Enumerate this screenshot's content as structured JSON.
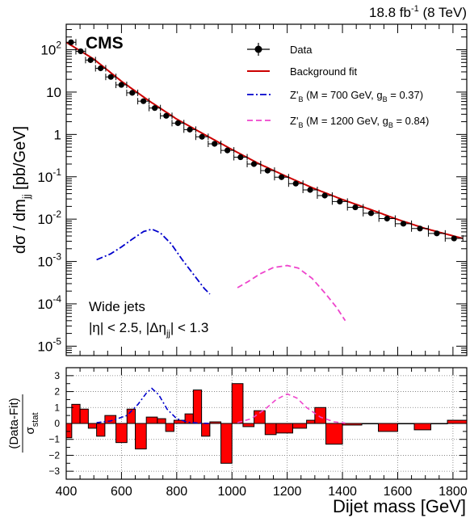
{
  "header": {
    "lumi": "18.8 fb",
    "lumi_sup": "-1",
    "energy": " (8 TeV)"
  },
  "chart_data": [
    {
      "type": "scatter",
      "panel": "main",
      "experiment_label": "CMS",
      "xlabel": "Dijet mass [GeV]",
      "ylabel_parts": {
        "main": "dσ / dm",
        "sub": "jj",
        "tail": " [pb/GeV]"
      },
      "yscale": "log",
      "xlim": [
        400,
        1850
      ],
      "ylim": [
        6e-06,
        400
      ],
      "x_ticks": [
        400,
        600,
        800,
        1000,
        1200,
        1400,
        1600,
        1800
      ],
      "y_ticks": [
        {
          "value": 1e-05,
          "base": "10",
          "exp": "-5"
        },
        {
          "value": 0.0001,
          "base": "10",
          "exp": "-4"
        },
        {
          "value": 0.001,
          "base": "10",
          "exp": "-3"
        },
        {
          "value": 0.01,
          "base": "10",
          "exp": "-2"
        },
        {
          "value": 0.1,
          "base": "10",
          "exp": "-1"
        },
        {
          "value": 1,
          "base": "1",
          "exp": ""
        },
        {
          "value": 10,
          "base": "10",
          "exp": ""
        },
        {
          "value": 100,
          "base": "10",
          "exp": "2"
        }
      ],
      "annotation_lines": [
        {
          "text": "Wide jets"
        },
        {
          "text": "|η| < 2.5, |Δη",
          "sub": "jj",
          "tail": "| < 1.3"
        }
      ],
      "legend": [
        {
          "key": "data",
          "label": "Data",
          "sub": "",
          "tail": "",
          "color": "#000000",
          "style": "marker"
        },
        {
          "key": "fit",
          "label": "Background fit",
          "sub": "",
          "tail": "",
          "color": "#cc0000",
          "style": "solid"
        },
        {
          "key": "zb700",
          "label": "Z'",
          "sub": "B",
          "tail": " (M = 700 GeV, g",
          "sub2": "B",
          "tail2": " = 0.37)",
          "color": "#0000cc",
          "style": "dashdot"
        },
        {
          "key": "zb1200",
          "label": "Z'",
          "sub": "B",
          "tail": " (M = 1200 GeV, g",
          "sub2": "B",
          "tail2": " = 0.84)",
          "color": "#ee44cc",
          "style": "dashed"
        }
      ],
      "series": [
        {
          "name": "Data",
          "color": "#000000",
          "bins": [
            [
              400,
              435,
              150
            ],
            [
              435,
              470,
              92
            ],
            [
              470,
              506,
              57
            ],
            [
              506,
              543,
              36.5
            ],
            [
              543,
              580,
              22.8
            ],
            [
              580,
              619,
              14.8
            ],
            [
              619,
              659,
              9.6
            ],
            [
              659,
              700,
              6.1
            ],
            [
              700,
              741,
              4.2
            ],
            [
              741,
              783,
              2.75
            ],
            [
              783,
              826,
              1.85
            ],
            [
              826,
              869,
              1.3
            ],
            [
              869,
              914,
              0.88
            ],
            [
              914,
              960,
              0.6
            ],
            [
              960,
              1007,
              0.42
            ],
            [
              1007,
              1055,
              0.29
            ],
            [
              1055,
              1104,
              0.2
            ],
            [
              1104,
              1154,
              0.14
            ],
            [
              1154,
              1205,
              0.098
            ],
            [
              1205,
              1257,
              0.069
            ],
            [
              1257,
              1309,
              0.049
            ],
            [
              1309,
              1363,
              0.036
            ],
            [
              1363,
              1418,
              0.026
            ],
            [
              1418,
              1475,
              0.019
            ],
            [
              1475,
              1532,
              0.0138
            ],
            [
              1532,
              1591,
              0.0103
            ],
            [
              1591,
              1650,
              0.0078
            ],
            [
              1650,
              1711,
              0.006
            ],
            [
              1711,
              1772,
              0.0046
            ],
            [
              1772,
              1836,
              0.0035
            ]
          ]
        },
        {
          "name": "Background fit",
          "color": "#cc0000",
          "points": [
            [
              400,
              150
            ],
            [
              500,
              60
            ],
            [
              600,
              18
            ],
            [
              700,
              6.2
            ],
            [
              800,
              2.3
            ],
            [
              900,
              1.0
            ],
            [
              1000,
              0.44
            ],
            [
              1100,
              0.2
            ],
            [
              1200,
              0.1
            ],
            [
              1300,
              0.052
            ],
            [
              1400,
              0.029
            ],
            [
              1500,
              0.017
            ],
            [
              1600,
              0.0098
            ],
            [
              1700,
              0.006
            ],
            [
              1836,
              0.0035
            ]
          ]
        },
        {
          "name": "Z'B (M = 700 GeV, gB = 0.37)",
          "color": "#0000cc",
          "points": [
            [
              510,
              0.0011
            ],
            [
              560,
              0.0015
            ],
            [
              600,
              0.0022
            ],
            [
              640,
              0.0034
            ],
            [
              680,
              0.0051
            ],
            [
              710,
              0.0058
            ],
            [
              740,
              0.0048
            ],
            [
              780,
              0.0026
            ],
            [
              820,
              0.0011
            ],
            [
              860,
              0.0005
            ],
            [
              900,
              0.00023
            ],
            [
              920,
              0.00017
            ]
          ]
        },
        {
          "name": "Z'B (M = 1200 GeV, gB = 0.84)",
          "color": "#ee44cc",
          "points": [
            [
              1020,
              0.00024
            ],
            [
              1060,
              0.00034
            ],
            [
              1100,
              0.0005
            ],
            [
              1150,
              0.00072
            ],
            [
              1200,
              0.0008
            ],
            [
              1240,
              0.0007
            ],
            [
              1290,
              0.0004
            ],
            [
              1340,
              0.00017
            ],
            [
              1380,
              8e-05
            ],
            [
              1410,
              4e-05
            ]
          ]
        }
      ]
    },
    {
      "type": "bar",
      "panel": "ratio",
      "ylabel_top": "(Data-Fit)",
      "ylabel_bottom": "σ",
      "ylabel_bottom_sub": "stat",
      "xlabel": "Dijet mass [GeV]",
      "xlim": [
        400,
        1850
      ],
      "ylim": [
        -3.5,
        3.5
      ],
      "x_ticks": [
        400,
        600,
        800,
        1000,
        1200,
        1400,
        1600,
        1800
      ],
      "x_tick_labels": [
        "400",
        "600",
        "800",
        "1000",
        "1200",
        "1400",
        "1600",
        "1800"
      ],
      "y_ticks": [
        -3,
        -2,
        -1,
        0,
        1,
        2,
        3
      ],
      "y_tick_labels": [
        "−3",
        "−2",
        "−1",
        "0",
        "1",
        "2",
        "3"
      ],
      "grid": true,
      "bins": [
        [
          400,
          420,
          -0.9
        ],
        [
          420,
          450,
          1.2
        ],
        [
          450,
          480,
          0.9
        ],
        [
          480,
          510,
          -0.3
        ],
        [
          510,
          540,
          -0.8
        ],
        [
          540,
          580,
          0.5
        ],
        [
          580,
          620,
          -1.2
        ],
        [
          620,
          650,
          0.9
        ],
        [
          650,
          690,
          -1.6
        ],
        [
          690,
          730,
          0.4
        ],
        [
          730,
          760,
          0.3
        ],
        [
          760,
          790,
          -0.5
        ],
        [
          790,
          830,
          0.2
        ],
        [
          830,
          860,
          0.6
        ],
        [
          860,
          890,
          2.1
        ],
        [
          890,
          920,
          -0.8
        ],
        [
          920,
          960,
          0.1
        ],
        [
          960,
          1000,
          -2.5
        ],
        [
          1000,
          1040,
          2.5
        ],
        [
          1040,
          1080,
          -0.2
        ],
        [
          1080,
          1120,
          0.8
        ],
        [
          1120,
          1160,
          -0.7
        ],
        [
          1160,
          1220,
          -0.6
        ],
        [
          1220,
          1270,
          -0.3
        ],
        [
          1270,
          1300,
          0.2
        ],
        [
          1300,
          1340,
          1.0
        ],
        [
          1340,
          1400,
          -1.3
        ],
        [
          1400,
          1470,
          -0.1
        ],
        [
          1470,
          1530,
          0.0
        ],
        [
          1530,
          1600,
          -0.5
        ],
        [
          1600,
          1660,
          0.0
        ],
        [
          1660,
          1720,
          -0.4
        ],
        [
          1720,
          1780,
          0.0
        ],
        [
          1780,
          1850,
          0.2
        ]
      ],
      "series": [
        {
          "name": "Z'B 700",
          "color": "#0000cc",
          "points": [
            [
              510,
              0.05
            ],
            [
              560,
              0.15
            ],
            [
              620,
              0.5
            ],
            [
              660,
              1.2
            ],
            [
              690,
              1.9
            ],
            [
              710,
              2.2
            ],
            [
              735,
              1.8
            ],
            [
              765,
              0.9
            ],
            [
              800,
              0.3
            ],
            [
              840,
              0.08
            ],
            [
              880,
              0.02
            ],
            [
              920,
              0.0
            ]
          ]
        },
        {
          "name": "Z'B 1200",
          "color": "#ee44cc",
          "points": [
            [
              1020,
              0.05
            ],
            [
              1070,
              0.3
            ],
            [
              1120,
              0.9
            ],
            [
              1160,
              1.5
            ],
            [
              1200,
              1.85
            ],
            [
              1235,
              1.6
            ],
            [
              1270,
              1.0
            ],
            [
              1320,
              0.4
            ],
            [
              1370,
              0.1
            ],
            [
              1410,
              0.02
            ]
          ]
        }
      ]
    }
  ]
}
